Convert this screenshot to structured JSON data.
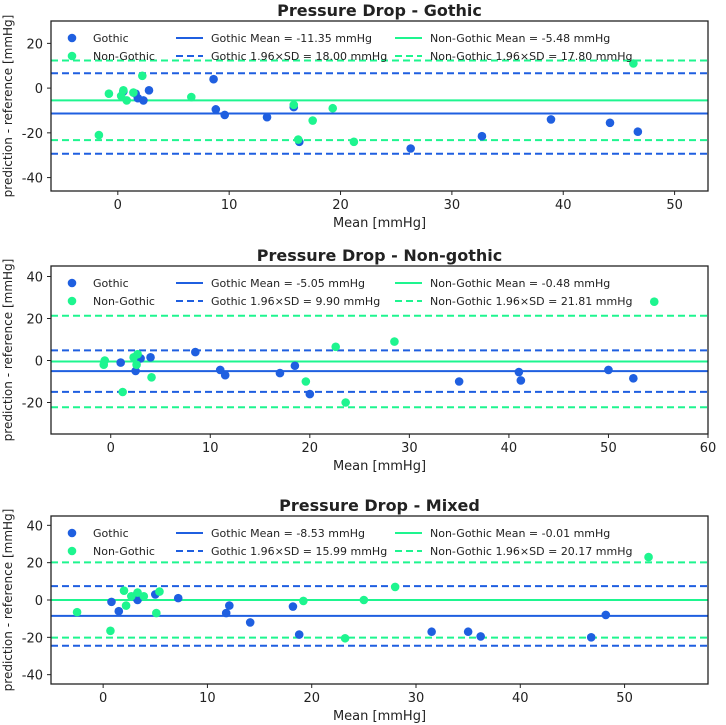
{
  "colors": {
    "gothic": "#1f5fe0",
    "non_gothic": "#1ef58f",
    "axis": "#222222",
    "text": "#222222"
  },
  "chart_data": [
    {
      "type": "scatter",
      "title": "Pressure Drop - Gothic",
      "xlabel": "Mean [mmHg]",
      "ylabel": "prediction - reference [mmHg]",
      "xlim": [
        -6,
        53
      ],
      "ylim": [
        -46,
        30
      ],
      "xticks": [
        0,
        10,
        20,
        30,
        40,
        50
      ],
      "yticks": [
        -40,
        -20,
        0,
        20
      ],
      "legend": {
        "gothic": "Gothic",
        "non_gothic": "Non-Gothic",
        "gothic_mean": "Gothic Mean = -11.35 mmHg",
        "gothic_loa": "Gothic 1.96×SD = 18.00 mmHg",
        "non_gothic_mean": "Non-Gothic Mean = -5.48 mmHg",
        "non_gothic_loa": "Non-Gothic 1.96×SD = 17.80 mmHg"
      },
      "lines": {
        "gothic_mean": -11.35,
        "gothic_upper": 6.65,
        "gothic_lower": -29.35,
        "non_gothic_mean": -5.48,
        "non_gothic_upper": 12.32,
        "non_gothic_lower": -23.28
      },
      "series": [
        {
          "name": "Gothic",
          "points": [
            [
              0.5,
              -1.5
            ],
            [
              1.6,
              -2.5
            ],
            [
              1.8,
              -4.5
            ],
            [
              2.3,
              -5.5
            ],
            [
              2.8,
              -1
            ],
            [
              8.6,
              4
            ],
            [
              8.8,
              -9.5
            ],
            [
              9.6,
              -12
            ],
            [
              13.4,
              -13
            ],
            [
              15.8,
              -8.5
            ],
            [
              16.3,
              -24
            ],
            [
              26.3,
              -27
            ],
            [
              32.7,
              -21.5
            ],
            [
              38.9,
              -14
            ],
            [
              44.2,
              -15.5
            ],
            [
              46.7,
              -19.5
            ]
          ]
        },
        {
          "name": "Non-Gothic",
          "points": [
            [
              -1.7,
              -21
            ],
            [
              -0.8,
              -2.5
            ],
            [
              0.3,
              -3.5
            ],
            [
              0.5,
              -1
            ],
            [
              0.8,
              -5.5
            ],
            [
              1.4,
              -2
            ],
            [
              2.2,
              5.5
            ],
            [
              6.6,
              -4
            ],
            [
              15.8,
              -7.5
            ],
            [
              16.2,
              -23
            ],
            [
              17.5,
              -14.5
            ],
            [
              19.3,
              -9
            ],
            [
              21.2,
              -24
            ],
            [
              46.3,
              11
            ]
          ]
        }
      ]
    },
    {
      "type": "scatter",
      "title": "Pressure Drop - Non-gothic",
      "xlabel": "Mean [mmHg]",
      "ylabel": "prediction - reference [mmHg]",
      "xlim": [
        -6,
        60
      ],
      "ylim": [
        -35,
        45
      ],
      "xticks": [
        0,
        10,
        20,
        30,
        40,
        50,
        60
      ],
      "yticks": [
        -20,
        0,
        20,
        40
      ],
      "legend": {
        "gothic": "Gothic",
        "non_gothic": "Non-Gothic",
        "gothic_mean": "Gothic Mean = -5.05 mmHg",
        "gothic_loa": "Gothic 1.96×SD = 9.90 mmHg",
        "non_gothic_mean": "Non-Gothic Mean = -0.48 mmHg",
        "non_gothic_loa": "Non-Gothic 1.96×SD = 21.81 mmHg"
      },
      "lines": {
        "gothic_mean": -5.05,
        "gothic_upper": 4.85,
        "gothic_lower": -14.95,
        "non_gothic_mean": -0.48,
        "non_gothic_upper": 21.33,
        "non_gothic_lower": -22.29
      },
      "series": [
        {
          "name": "Gothic",
          "points": [
            [
              1,
              -1
            ],
            [
              2.5,
              -5
            ],
            [
              3,
              1
            ],
            [
              4,
              1.5
            ],
            [
              8.5,
              4
            ],
            [
              11,
              -4.5
            ],
            [
              11.5,
              -7
            ],
            [
              17,
              -6
            ],
            [
              18.5,
              -2.5
            ],
            [
              20,
              -16
            ],
            [
              35,
              -10
            ],
            [
              41,
              -5.5
            ],
            [
              41.2,
              -9.5
            ],
            [
              50,
              -4.5
            ],
            [
              52.5,
              -8.5
            ]
          ]
        },
        {
          "name": "Non-Gothic",
          "points": [
            [
              -0.7,
              -2
            ],
            [
              -0.6,
              0
            ],
            [
              1.2,
              -15
            ],
            [
              2.3,
              1.5
            ],
            [
              2.6,
              -2
            ],
            [
              2.7,
              3
            ],
            [
              4.1,
              -8
            ],
            [
              19.6,
              -10
            ],
            [
              22.6,
              6.5
            ],
            [
              23.6,
              -20
            ],
            [
              28.5,
              9
            ],
            [
              54.6,
              28
            ]
          ]
        }
      ]
    },
    {
      "type": "scatter",
      "title": "Pressure Drop - Mixed",
      "xlabel": "Mean [mmHg]",
      "ylabel": "prediction - reference [mmHg]",
      "xlim": [
        -5,
        58
      ],
      "ylim": [
        -45,
        45
      ],
      "xticks": [
        0,
        10,
        20,
        30,
        40,
        50
      ],
      "yticks": [
        -40,
        -20,
        0,
        20,
        40
      ],
      "legend": {
        "gothic": "Gothic",
        "non_gothic": "Non-Gothic",
        "gothic_mean": "Gothic Mean = -8.53 mmHg",
        "gothic_loa": "Gothic 1.96×SD = 15.99 mmHg",
        "non_gothic_mean": "Non-Gothic Mean = -0.01 mmHg",
        "non_gothic_loa": "Non-Gothic 1.96×SD = 20.17 mmHg"
      },
      "lines": {
        "gothic_mean": -8.53,
        "gothic_upper": 7.46,
        "gothic_lower": -24.52,
        "non_gothic_mean": -0.01,
        "non_gothic_upper": 20.16,
        "non_gothic_lower": -20.18
      },
      "series": [
        {
          "name": "Gothic",
          "points": [
            [
              0.8,
              -1
            ],
            [
              1.5,
              -6
            ],
            [
              3,
              2
            ],
            [
              3.3,
              0
            ],
            [
              5,
              3
            ],
            [
              7.2,
              1
            ],
            [
              11.8,
              -7
            ],
            [
              12.1,
              -3
            ],
            [
              14.1,
              -12
            ],
            [
              18.2,
              -3.5
            ],
            [
              18.8,
              -18.5
            ],
            [
              31.5,
              -17
            ],
            [
              35,
              -17
            ],
            [
              36.2,
              -19.5
            ],
            [
              46.8,
              -20
            ],
            [
              48.2,
              -8
            ]
          ]
        },
        {
          "name": "Non-Gothic",
          "points": [
            [
              -2.5,
              -6.5
            ],
            [
              0.7,
              -16.5
            ],
            [
              2,
              5
            ],
            [
              2.2,
              -3
            ],
            [
              2.7,
              2
            ],
            [
              3.3,
              4
            ],
            [
              3.9,
              2
            ],
            [
              5.1,
              -7
            ],
            [
              5.4,
              4.5
            ],
            [
              19.2,
              -0.5
            ],
            [
              23.2,
              -20.5
            ],
            [
              25,
              0
            ],
            [
              28,
              7
            ],
            [
              52.3,
              23
            ]
          ]
        }
      ]
    }
  ]
}
